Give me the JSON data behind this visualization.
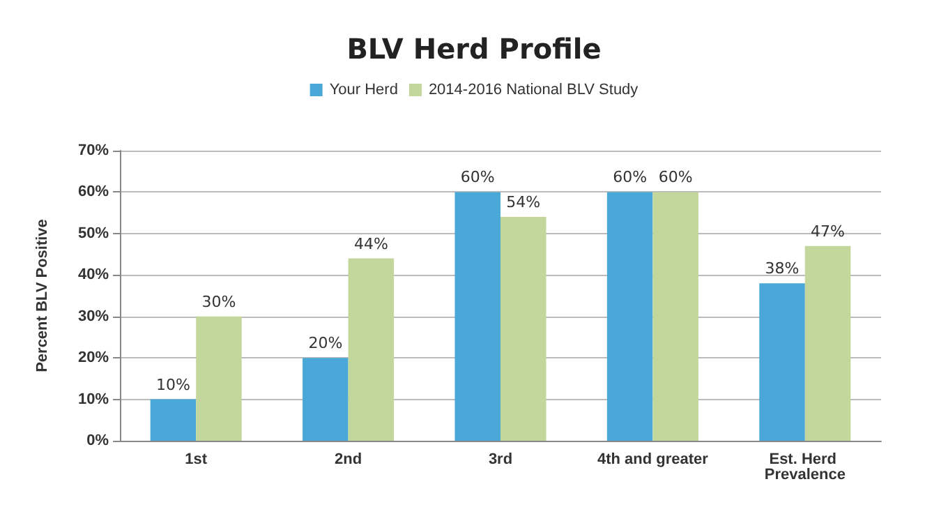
{
  "chart_data": {
    "type": "bar",
    "title": "BLV Herd Profile",
    "ylabel": "Percent BLV Positive",
    "categories": [
      "1st",
      "2nd",
      "3rd",
      "4th and greater",
      "Est. Herd Prevalence"
    ],
    "series": [
      {
        "name": "Your Herd",
        "color": "#4aa8d8",
        "values": [
          10,
          20,
          60,
          60,
          38
        ],
        "value_labels": [
          "10%",
          "20%",
          "60%",
          "60%",
          "38%"
        ]
      },
      {
        "name": "2014-2016 National BLV Study",
        "color": "#c3d69b",
        "values": [
          30,
          44,
          54,
          60,
          47
        ],
        "value_labels": [
          "30%",
          "44%",
          "54%",
          "60%",
          "47%"
        ]
      }
    ],
    "ylim": [
      0,
      70
    ],
    "yticks": [
      {
        "value": 0,
        "label": "0%"
      },
      {
        "value": 10,
        "label": "10%"
      },
      {
        "value": 20,
        "label": "20%"
      },
      {
        "value": 30,
        "label": "30%"
      },
      {
        "value": 40,
        "label": "40%"
      },
      {
        "value": 50,
        "label": "50%"
      },
      {
        "value": 60,
        "label": "60%"
      },
      {
        "value": 70,
        "label": "70%"
      }
    ],
    "grid": "y",
    "legend": "top"
  }
}
